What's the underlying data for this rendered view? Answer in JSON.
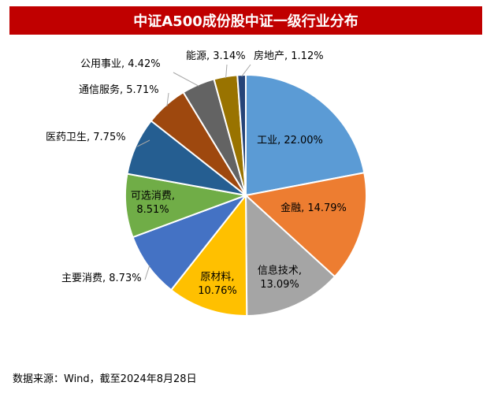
{
  "chart_data": {
    "type": "pie",
    "title": "中证A500成份股中证一级行业分布",
    "slices": [
      {
        "category": "工业",
        "value": 22.0,
        "label": "工业, 22.00%",
        "color": "#5B9BD5"
      },
      {
        "category": "金融",
        "value": 14.79,
        "label": "金融, 14.79%",
        "color": "#ED7D31"
      },
      {
        "category": "信息技术",
        "value": 13.09,
        "label": "信息技术, 13.09%",
        "color": "#A5A5A5"
      },
      {
        "category": "原材料",
        "value": 10.76,
        "label": "原材料, 10.76%",
        "color": "#FFC000"
      },
      {
        "category": "主要消费",
        "value": 8.73,
        "label": "主要消费, 8.73%",
        "color": "#4472C4"
      },
      {
        "category": "可选消费",
        "value": 8.51,
        "label": "可选消费, 8.51%",
        "color": "#70AD47"
      },
      {
        "category": "医药卫生",
        "value": 7.75,
        "label": "医药卫生, 7.75%",
        "color": "#255E91"
      },
      {
        "category": "通信服务",
        "value": 5.71,
        "label": "通信服务, 5.71%",
        "color": "#9E480E"
      },
      {
        "category": "公用事业",
        "value": 4.42,
        "label": "公用事业, 4.42%",
        "color": "#636363"
      },
      {
        "category": "能源",
        "value": 3.14,
        "label": "能源, 3.14%",
        "color": "#997300"
      },
      {
        "category": "房地产",
        "value": 1.12,
        "label": "房地产, 1.12%",
        "color": "#264478"
      }
    ],
    "unit": "%"
  },
  "source": "数据来源：Wind，截至2024年8月28日"
}
